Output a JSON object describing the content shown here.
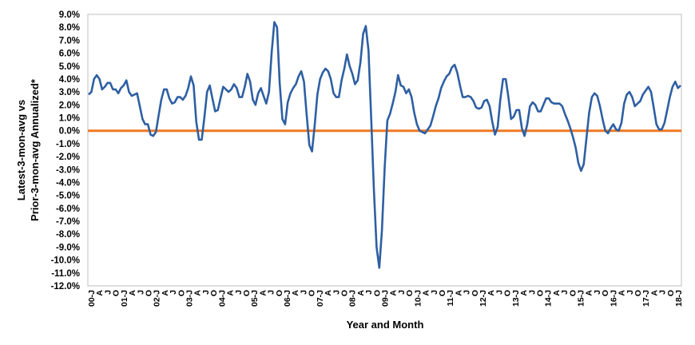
{
  "chart_data": {
    "type": "line",
    "title": "",
    "xlabel": "Year and Month",
    "ylabel_lines": [
      "Latest-3-mon-avg vs",
      "Prior-3-mon-avg Annualized*"
    ],
    "ylim": [
      -12.0,
      9.0
    ],
    "y_ticks": [
      "9.0%",
      "8.0%",
      "7.0%",
      "6.0%",
      "5.0%",
      "4.0%",
      "3.0%",
      "2.0%",
      "1.0%",
      "0.0%",
      "-1.0%",
      "-2.0%",
      "-3.0%",
      "-4.0%",
      "-5.0%",
      "-6.0%",
      "-7.0%",
      "-8.0%",
      "-9.0%",
      "-10.0%",
      "-11.0%",
      "-12.0%"
    ],
    "x_ticks": [
      "00-J",
      "A",
      "J",
      "O",
      "01-J",
      "A",
      "J",
      "O",
      "02-J",
      "A",
      "J",
      "O",
      "03-J",
      "A",
      "J",
      "O",
      "04-J",
      "A",
      "J",
      "O",
      "05-J",
      "A",
      "J",
      "O",
      "06-J",
      "A",
      "J",
      "O",
      "07-J",
      "A",
      "J",
      "O",
      "08-J",
      "A",
      "J",
      "O",
      "09-J",
      "A",
      "J",
      "O",
      "10-J",
      "A",
      "J",
      "O",
      "11-J",
      "A",
      "J",
      "O",
      "12-J",
      "A",
      "J",
      "O",
      "13-J",
      "A",
      "J",
      "O",
      "14-J",
      "A",
      "J",
      "O",
      "15-J",
      "A",
      "J",
      "O",
      "16-J",
      "A",
      "J",
      "O",
      "17-J",
      "A",
      "J",
      "O",
      "18-J"
    ],
    "grid": false,
    "legend": "none",
    "series": [
      {
        "color": "#2e5fa3",
        "values": [
          2.8,
          3.0,
          4.0,
          4.3,
          4.0,
          3.2,
          3.4,
          3.7,
          3.7,
          3.2,
          3.2,
          2.9,
          3.3,
          3.5,
          3.9,
          3.0,
          2.7,
          2.8,
          2.9,
          1.9,
          0.9,
          0.5,
          0.5,
          -0.3,
          -0.4,
          -0.1,
          1.2,
          2.4,
          3.2,
          3.2,
          2.5,
          2.1,
          2.2,
          2.6,
          2.6,
          2.4,
          2.7,
          3.3,
          4.2,
          3.5,
          0.7,
          -0.7,
          -0.7,
          1.0,
          3.0,
          3.5,
          2.5,
          1.5,
          1.6,
          2.5,
          3.4,
          3.2,
          3.0,
          3.2,
          3.6,
          3.3,
          2.6,
          2.6,
          3.4,
          4.4,
          3.8,
          2.4,
          2.0,
          2.9,
          3.3,
          2.7,
          2.1,
          3.0,
          6.0,
          8.4,
          8.0,
          3.7,
          0.9,
          0.5,
          2.2,
          2.9,
          3.3,
          3.6,
          4.2,
          4.6,
          3.8,
          1.3,
          -1.1,
          -1.6,
          0.4,
          2.8,
          4.0,
          4.5,
          4.8,
          4.6,
          4.0,
          2.9,
          2.6,
          2.6,
          3.9,
          4.8,
          5.9,
          5.0,
          4.4,
          3.6,
          3.9,
          5.3,
          7.5,
          8.1,
          6.2,
          0.9,
          -4.5,
          -9.0,
          -10.6,
          -7.7,
          -2.9,
          0.8,
          1.3,
          2.1,
          3.0,
          4.3,
          3.5,
          3.4,
          2.9,
          3.2,
          2.6,
          1.4,
          0.5,
          0.0,
          -0.1,
          -0.2,
          0.1,
          0.4,
          1.1,
          1.9,
          2.5,
          3.3,
          3.8,
          4.2,
          4.4,
          4.9,
          5.1,
          4.5,
          3.5,
          2.6,
          2.6,
          2.7,
          2.6,
          2.3,
          1.8,
          1.7,
          1.8,
          2.3,
          2.4,
          1.9,
          0.7,
          -0.3,
          0.3,
          2.4,
          4.0,
          4.0,
          2.6,
          0.9,
          1.1,
          1.6,
          1.6,
          0.2,
          -0.4,
          0.5,
          1.9,
          2.2,
          2.0,
          1.5,
          1.5,
          2.0,
          2.5,
          2.5,
          2.2,
          2.1,
          2.1,
          2.1,
          1.9,
          1.3,
          0.8,
          0.2,
          -0.5,
          -1.3,
          -2.5,
          -3.1,
          -2.6,
          -0.6,
          1.4,
          2.6,
          2.9,
          2.7,
          1.9,
          0.9,
          0.0,
          -0.2,
          0.2,
          0.5,
          0.1,
          0.0,
          0.6,
          2.1,
          2.8,
          3.0,
          2.6,
          1.9,
          2.1,
          2.3,
          2.8,
          3.1,
          3.4,
          3.0,
          1.8,
          0.5,
          0.1,
          0.1,
          0.6,
          1.6,
          2.6,
          3.4,
          3.8,
          3.3,
          3.5
        ]
      }
    ],
    "zero_line_color": "#f07820"
  }
}
